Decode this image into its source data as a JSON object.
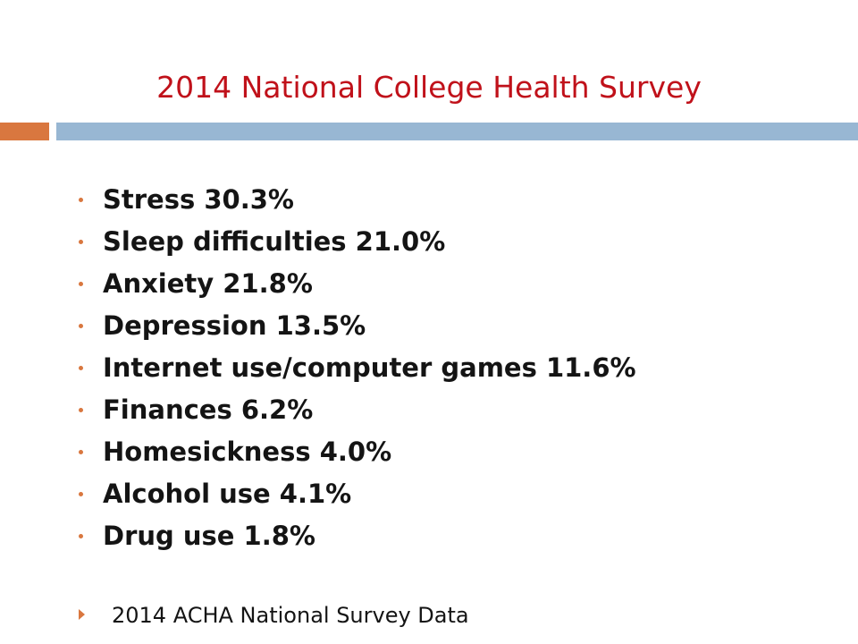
{
  "title": "2014 National College Health Survey",
  "colors": {
    "title": "#c0111a",
    "accent_orange": "#d9773f",
    "accent_blue": "#98b7d3",
    "text": "#141414"
  },
  "items": [
    "Stress 30.3%",
    "Sleep difficulties 21.0%",
    "Anxiety 21.8%",
    "Depression 13.5%",
    "Internet use/computer games 11.6%",
    "Finances 6.2%",
    "Homesickness 4.0%",
    "Alcohol use 4.1%",
    "Drug use 1.8%"
  ],
  "footer": {
    "source": "2014 ACHA National Survey Data",
    "bullet_icon": "arrow-right-icon"
  }
}
